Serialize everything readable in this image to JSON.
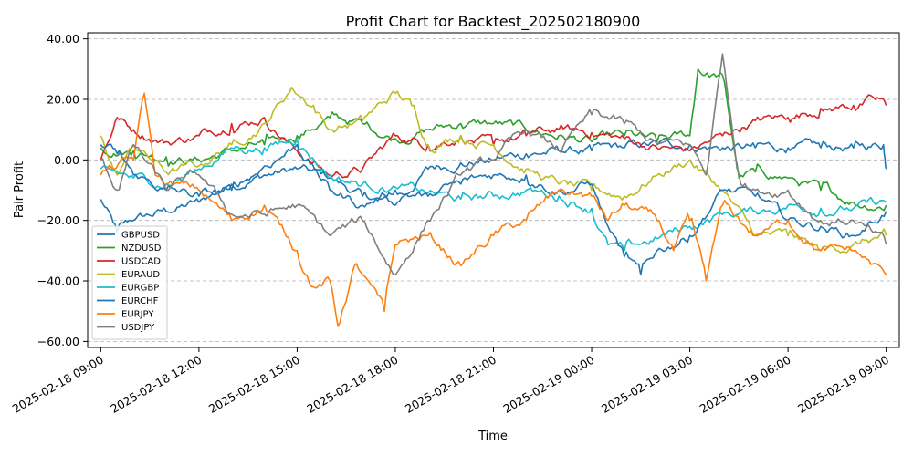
{
  "chart_data": {
    "type": "line",
    "title": "Profit Chart for Backtest_202502180900",
    "xlabel": "Time",
    "ylabel": "Pair Profit",
    "xlim": [
      "2025-02-18 08:36",
      "2025-02-19 09:24"
    ],
    "ylim": [
      -62,
      42
    ],
    "grid": {
      "y": true,
      "x": false,
      "style": "dashed"
    },
    "legend_position": "lower-left",
    "x_ticks": [
      "2025-02-18 09:00",
      "2025-02-18 12:00",
      "2025-02-18 15:00",
      "2025-02-18 18:00",
      "2025-02-18 21:00",
      "2025-02-19 00:00",
      "2025-02-19 03:00",
      "2025-02-19 06:00",
      "2025-02-19 09:00"
    ],
    "y_ticks": [
      "40.00",
      "20.00",
      "0.00",
      "−20.00",
      "−40.00",
      "−60.00"
    ],
    "y_tick_values": [
      40,
      20,
      0,
      -20,
      -40,
      -60
    ],
    "series": [
      {
        "name": "GBPUSD",
        "color": "#1f77b4",
        "points": [
          [
            "2025-02-18 09:00",
            -13
          ],
          [
            "2025-02-18 09:30",
            -24
          ],
          [
            "2025-02-18 10:00",
            -20
          ],
          [
            "2025-02-18 11:00",
            -17
          ],
          [
            "2025-02-18 12:00",
            -14
          ],
          [
            "2025-02-18 13:00",
            -8
          ],
          [
            "2025-02-18 14:00",
            -5
          ],
          [
            "2025-02-18 15:00",
            -3
          ],
          [
            "2025-02-18 16:00",
            -6
          ],
          [
            "2025-02-18 17:00",
            -12
          ],
          [
            "2025-02-18 18:00",
            -15
          ],
          [
            "2025-02-18 19:00",
            -3
          ],
          [
            "2025-02-18 20:00",
            -1
          ],
          [
            "2025-02-18 21:00",
            0
          ],
          [
            "2025-02-18 22:00",
            2
          ],
          [
            "2025-02-18 23:00",
            3
          ],
          [
            "2025-02-19 00:00",
            3
          ],
          [
            "2025-02-19 01:00",
            4
          ],
          [
            "2025-02-19 02:00",
            5
          ],
          [
            "2025-02-19 03:00",
            5
          ],
          [
            "2025-02-19 04:00",
            4
          ],
          [
            "2025-02-19 05:00",
            4
          ],
          [
            "2025-02-19 06:00",
            4
          ],
          [
            "2025-02-19 07:00",
            4
          ],
          [
            "2025-02-19 08:00",
            4
          ],
          [
            "2025-02-19 08:55",
            5
          ],
          [
            "2025-02-19 09:00",
            -3
          ]
        ]
      },
      {
        "name": "NZDUSD",
        "color": "#2ca02c",
        "points": [
          [
            "2025-02-18 09:00",
            4
          ],
          [
            "2025-02-18 10:00",
            3
          ],
          [
            "2025-02-18 11:00",
            1
          ],
          [
            "2025-02-18 12:00",
            0
          ],
          [
            "2025-02-18 13:00",
            3
          ],
          [
            "2025-02-18 14:00",
            5
          ],
          [
            "2025-02-18 15:00",
            8
          ],
          [
            "2025-02-18 16:00",
            14
          ],
          [
            "2025-02-18 17:00",
            12
          ],
          [
            "2025-02-18 18:00",
            7
          ],
          [
            "2025-02-18 19:00",
            10
          ],
          [
            "2025-02-18 20:00",
            12
          ],
          [
            "2025-02-18 21:00",
            12
          ],
          [
            "2025-02-18 22:00",
            10
          ],
          [
            "2025-02-18 23:00",
            8
          ],
          [
            "2025-02-19 00:00",
            6
          ],
          [
            "2025-02-19 01:00",
            8
          ],
          [
            "2025-02-19 02:00",
            6
          ],
          [
            "2025-02-19 03:00",
            8
          ],
          [
            "2025-02-19 03:15",
            30
          ],
          [
            "2025-02-19 03:40",
            28
          ],
          [
            "2025-02-19 04:00",
            28
          ],
          [
            "2025-02-19 04:30",
            -6
          ],
          [
            "2025-02-19 05:00",
            -4
          ],
          [
            "2025-02-19 06:00",
            -6
          ],
          [
            "2025-02-19 07:00",
            -10
          ],
          [
            "2025-02-19 08:00",
            -14
          ],
          [
            "2025-02-19 09:00",
            -15
          ]
        ]
      },
      {
        "name": "USDCAD",
        "color": "#d62728",
        "points": [
          [
            "2025-02-18 09:00",
            0
          ],
          [
            "2025-02-18 09:30",
            14
          ],
          [
            "2025-02-18 10:00",
            10
          ],
          [
            "2025-02-18 11:00",
            6
          ],
          [
            "2025-02-18 12:00",
            8
          ],
          [
            "2025-02-18 13:00",
            12
          ],
          [
            "2025-02-18 14:00",
            14
          ],
          [
            "2025-02-18 15:00",
            3
          ],
          [
            "2025-02-18 16:00",
            -5
          ],
          [
            "2025-02-18 17:00",
            -3
          ],
          [
            "2025-02-18 18:00",
            8
          ],
          [
            "2025-02-18 19:00",
            5
          ],
          [
            "2025-02-18 20:00",
            8
          ],
          [
            "2025-02-18 21:00",
            5
          ],
          [
            "2025-02-18 22:00",
            8
          ],
          [
            "2025-02-18 23:00",
            10
          ],
          [
            "2025-02-19 00:00",
            9
          ],
          [
            "2025-02-19 01:00",
            7
          ],
          [
            "2025-02-19 02:00",
            4
          ],
          [
            "2025-02-19 03:00",
            3
          ],
          [
            "2025-02-19 04:00",
            8
          ],
          [
            "2025-02-19 05:00",
            13
          ],
          [
            "2025-02-19 06:00",
            14
          ],
          [
            "2025-02-19 07:00",
            17
          ],
          [
            "2025-02-19 08:00",
            18
          ],
          [
            "2025-02-19 08:40",
            20
          ],
          [
            "2025-02-19 09:00",
            18
          ]
        ]
      },
      {
        "name": "EURAUD",
        "color": "#bcbd22",
        "points": [
          [
            "2025-02-18 09:00",
            8
          ],
          [
            "2025-02-18 09:30",
            -5
          ],
          [
            "2025-02-18 10:00",
            5
          ],
          [
            "2025-02-18 11:00",
            -4
          ],
          [
            "2025-02-18 12:00",
            -2
          ],
          [
            "2025-02-18 13:00",
            5
          ],
          [
            "2025-02-18 14:00",
            12
          ],
          [
            "2025-02-18 14:50",
            24
          ],
          [
            "2025-02-18 15:30",
            18
          ],
          [
            "2025-02-18 16:00",
            10
          ],
          [
            "2025-02-18 17:00",
            13
          ],
          [
            "2025-02-18 18:00",
            22
          ],
          [
            "2025-02-18 18:30",
            18
          ],
          [
            "2025-02-18 19:00",
            5
          ],
          [
            "2025-02-18 20:00",
            8
          ],
          [
            "2025-02-18 21:00",
            5
          ],
          [
            "2025-02-18 22:00",
            -3
          ],
          [
            "2025-02-18 23:00",
            -8
          ],
          [
            "2025-02-19 00:00",
            -10
          ],
          [
            "2025-02-19 01:00",
            -12
          ],
          [
            "2025-02-19 02:00",
            -5
          ],
          [
            "2025-02-19 03:00",
            0
          ],
          [
            "2025-02-19 04:00",
            -10
          ],
          [
            "2025-02-19 05:00",
            -25
          ],
          [
            "2025-02-19 06:00",
            -25
          ],
          [
            "2025-02-19 07:00",
            -30
          ],
          [
            "2025-02-19 08:00",
            -28
          ],
          [
            "2025-02-19 09:00",
            -25
          ]
        ]
      },
      {
        "name": "EURGBP",
        "color": "#17becf",
        "points": [
          [
            "2025-02-18 09:00",
            -3
          ],
          [
            "2025-02-18 10:00",
            -6
          ],
          [
            "2025-02-18 11:00",
            -8
          ],
          [
            "2025-02-18 12:00",
            -3
          ],
          [
            "2025-02-18 13:00",
            4
          ],
          [
            "2025-02-18 14:00",
            4
          ],
          [
            "2025-02-18 15:00",
            7
          ],
          [
            "2025-02-18 16:00",
            -5
          ],
          [
            "2025-02-18 17:00",
            -8
          ],
          [
            "2025-02-18 18:00",
            -9
          ],
          [
            "2025-02-18 19:00",
            -11
          ],
          [
            "2025-02-18 20:00",
            -13
          ],
          [
            "2025-02-18 21:00",
            -12
          ],
          [
            "2025-02-18 22:00",
            -10
          ],
          [
            "2025-02-18 23:00",
            -12
          ],
          [
            "2025-02-19 00:00",
            -16
          ],
          [
            "2025-02-19 00:30",
            -28
          ],
          [
            "2025-02-19 01:00",
            -30
          ],
          [
            "2025-02-19 02:00",
            -26
          ],
          [
            "2025-02-19 03:00",
            -22
          ],
          [
            "2025-02-19 04:00",
            -18
          ],
          [
            "2025-02-19 05:00",
            -17
          ],
          [
            "2025-02-19 06:00",
            -15
          ],
          [
            "2025-02-19 07:00",
            -16
          ],
          [
            "2025-02-19 08:00",
            -16
          ],
          [
            "2025-02-19 09:00",
            -14
          ]
        ]
      },
      {
        "name": "EURCHF",
        "color": "#1f77b4",
        "points": [
          [
            "2025-02-18 09:00",
            5
          ],
          [
            "2025-02-18 09:30",
            2
          ],
          [
            "2025-02-18 10:00",
            -5
          ],
          [
            "2025-02-18 11:00",
            -10
          ],
          [
            "2025-02-18 12:00",
            -12
          ],
          [
            "2025-02-18 13:00",
            -10
          ],
          [
            "2025-02-18 14:00",
            -2
          ],
          [
            "2025-02-18 15:00",
            5
          ],
          [
            "2025-02-18 16:00",
            -10
          ],
          [
            "2025-02-18 17:00",
            -15
          ],
          [
            "2025-02-18 18:00",
            -10
          ],
          [
            "2025-02-18 19:00",
            -12
          ],
          [
            "2025-02-18 20:00",
            -8
          ],
          [
            "2025-02-18 21:00",
            -5
          ],
          [
            "2025-02-18 22:00",
            -5
          ],
          [
            "2025-02-18 23:00",
            -10
          ],
          [
            "2025-02-19 00:00",
            -8
          ],
          [
            "2025-02-19 00:30",
            -22
          ],
          [
            "2025-02-19 01:00",
            -32
          ],
          [
            "2025-02-19 01:30",
            -38
          ],
          [
            "2025-02-19 02:00",
            -30
          ],
          [
            "2025-02-19 03:00",
            -25
          ],
          [
            "2025-02-19 04:00",
            -10
          ],
          [
            "2025-02-19 05:00",
            -12
          ],
          [
            "2025-02-19 06:00",
            -20
          ],
          [
            "2025-02-19 07:00",
            -22
          ],
          [
            "2025-02-19 08:00",
            -25
          ],
          [
            "2025-02-19 09:00",
            -17
          ]
        ]
      },
      {
        "name": "EURJPY",
        "color": "#ff7f0e",
        "points": [
          [
            "2025-02-18 09:00",
            -5
          ],
          [
            "2025-02-18 10:00",
            0
          ],
          [
            "2025-02-18 10:20",
            22
          ],
          [
            "2025-02-18 10:40",
            -5
          ],
          [
            "2025-02-18 11:00",
            -8
          ],
          [
            "2025-02-18 12:00",
            -10
          ],
          [
            "2025-02-18 13:00",
            -20
          ],
          [
            "2025-02-18 14:00",
            -15
          ],
          [
            "2025-02-18 15:00",
            -30
          ],
          [
            "2025-02-18 15:30",
            -42
          ],
          [
            "2025-02-18 16:00",
            -40
          ],
          [
            "2025-02-18 16:15",
            -55
          ],
          [
            "2025-02-18 16:45",
            -35
          ],
          [
            "2025-02-18 17:00",
            -38
          ],
          [
            "2025-02-18 17:40",
            -50
          ],
          [
            "2025-02-18 18:00",
            -28
          ],
          [
            "2025-02-18 19:00",
            -25
          ],
          [
            "2025-02-18 20:00",
            -35
          ],
          [
            "2025-02-18 21:00",
            -25
          ],
          [
            "2025-02-18 22:00",
            -20
          ],
          [
            "2025-02-18 23:00",
            -10
          ],
          [
            "2025-02-19 00:00",
            -12
          ],
          [
            "2025-02-19 00:30",
            -20
          ],
          [
            "2025-02-19 01:00",
            -15
          ],
          [
            "2025-02-19 02:00",
            -20
          ],
          [
            "2025-02-19 02:30",
            -30
          ],
          [
            "2025-02-19 03:00",
            -20
          ],
          [
            "2025-02-19 03:30",
            -40
          ],
          [
            "2025-02-19 04:00",
            -15
          ],
          [
            "2025-02-19 05:00",
            -25
          ],
          [
            "2025-02-19 06:00",
            -20
          ],
          [
            "2025-02-19 07:00",
            -30
          ],
          [
            "2025-02-19 08:00",
            -30
          ],
          [
            "2025-02-19 09:00",
            -38
          ]
        ]
      },
      {
        "name": "USDJPY",
        "color": "#7f7f7f",
        "points": [
          [
            "2025-02-18 09:00",
            0
          ],
          [
            "2025-02-18 09:30",
            -10
          ],
          [
            "2025-02-18 10:00",
            5
          ],
          [
            "2025-02-18 11:00",
            -10
          ],
          [
            "2025-02-18 12:00",
            -5
          ],
          [
            "2025-02-18 13:00",
            -18
          ],
          [
            "2025-02-18 14:00",
            -18
          ],
          [
            "2025-02-18 15:00",
            -15
          ],
          [
            "2025-02-18 16:00",
            -25
          ],
          [
            "2025-02-18 17:00",
            -20
          ],
          [
            "2025-02-18 18:00",
            -38
          ],
          [
            "2025-02-18 19:00",
            -20
          ],
          [
            "2025-02-18 20:00",
            -5
          ],
          [
            "2025-02-18 21:00",
            0
          ],
          [
            "2025-02-18 22:00",
            10
          ],
          [
            "2025-02-18 23:00",
            3
          ],
          [
            "2025-02-19 00:00",
            15
          ],
          [
            "2025-02-19 01:00",
            12
          ],
          [
            "2025-02-19 02:00",
            5
          ],
          [
            "2025-02-19 03:00",
            5
          ],
          [
            "2025-02-19 03:30",
            -5
          ],
          [
            "2025-02-19 04:00",
            35
          ],
          [
            "2025-02-19 04:30",
            -5
          ],
          [
            "2025-02-19 05:00",
            -10
          ],
          [
            "2025-02-19 06:00",
            -10
          ],
          [
            "2025-02-19 07:00",
            -20
          ],
          [
            "2025-02-19 08:00",
            -20
          ],
          [
            "2025-02-19 09:00",
            -28
          ]
        ]
      }
    ]
  }
}
